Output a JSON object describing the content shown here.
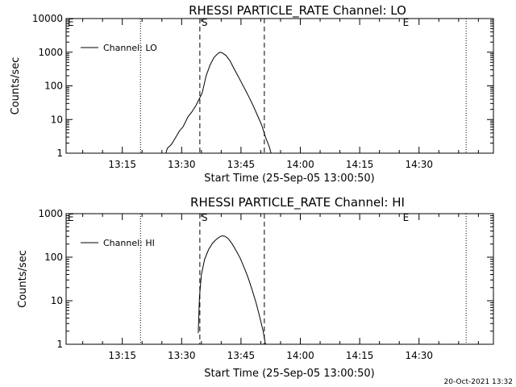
{
  "chart_data": [
    {
      "type": "line",
      "title": "RHESSI PARTICLE_RATE Channel: LO",
      "xlabel": "Start Time (25-Sep-05 13:00:50)",
      "ylabel": "Counts/sec",
      "yscale": "log",
      "ylim": [
        1,
        10000
      ],
      "ytick_labels": [
        "1",
        "10",
        "100",
        "1000",
        "10000"
      ],
      "xlim_minutes": [
        0,
        108
      ],
      "xticks": [
        {
          "minute": 14.2,
          "label": "13:15"
        },
        {
          "minute": 29.2,
          "label": "13:30"
        },
        {
          "minute": 44.2,
          "label": "13:45"
        },
        {
          "minute": 59.2,
          "label": "14:00"
        },
        {
          "minute": 74.2,
          "label": "14:15"
        },
        {
          "minute": 89.2,
          "label": "14:30"
        }
      ],
      "legend": {
        "entries": [
          "Channel: LO"
        ],
        "position": "top-left"
      },
      "markers": {
        "dotted_lines_minutes": [
          18.8,
          101.1
        ],
        "dashed_lines_minutes": [
          33.8,
          50.1
        ],
        "labels": [
          {
            "text": "E",
            "minute": 0
          },
          {
            "text": "S",
            "minute": 33.8
          },
          {
            "text": "E",
            "minute": 84.7
          }
        ]
      },
      "series": [
        {
          "name": "Channel: LO",
          "x": [
            25.2,
            25.6,
            26.6,
            27.6,
            28.6,
            29.6,
            30.8,
            31.8,
            32.8,
            33.6,
            34.4,
            35.4,
            36.4,
            37.4,
            38.4,
            38.9,
            39.4,
            40.4,
            41.4,
            42.4,
            43.4,
            44.4,
            45.4,
            46.4,
            47.4,
            48.4,
            49.4,
            50.4,
            51.4,
            51.8
          ],
          "y": [
            1,
            1.4,
            1.8,
            2.8,
            4.5,
            6.2,
            12,
            17,
            26,
            40,
            62,
            200,
            420,
            700,
            920,
            1000,
            960,
            800,
            560,
            330,
            200,
            120,
            72,
            42,
            24,
            13,
            7,
            3,
            1.5,
            1
          ]
        }
      ]
    },
    {
      "type": "line",
      "title": "RHESSI PARTICLE_RATE Channel: HI",
      "xlabel": "Start Time (25-Sep-05 13:00:50)",
      "ylabel": "Counts/sec",
      "yscale": "log",
      "ylim": [
        1,
        1000
      ],
      "ytick_labels": [
        "1",
        "10",
        "100",
        "1000"
      ],
      "xlim_minutes": [
        0,
        108
      ],
      "xticks": [
        {
          "minute": 14.2,
          "label": "13:15"
        },
        {
          "minute": 29.2,
          "label": "13:30"
        },
        {
          "minute": 44.2,
          "label": "13:45"
        },
        {
          "minute": 59.2,
          "label": "14:00"
        },
        {
          "minute": 74.2,
          "label": "14:15"
        },
        {
          "minute": 89.2,
          "label": "14:30"
        }
      ],
      "legend": {
        "entries": [
          "Channel: HI"
        ],
        "position": "top-left"
      },
      "markers": {
        "dotted_lines_minutes": [
          18.8,
          101.1
        ],
        "dashed_lines_minutes": [
          33.8,
          50.1
        ],
        "labels": [
          {
            "text": "E",
            "minute": 0
          },
          {
            "text": "S",
            "minute": 33.8
          },
          {
            "text": "E",
            "minute": 84.7
          }
        ]
      },
      "series": [
        {
          "name": "Channel: HI",
          "x": [
            33.4,
            33.7,
            34.2,
            35.0,
            36.0,
            37.0,
            38.0,
            39.0,
            39.6,
            40.2,
            41.0,
            42.0,
            43.0,
            44.0,
            45.0,
            46.0,
            47.0,
            48.0,
            49.0,
            49.8,
            50.4
          ],
          "y": [
            1.8,
            12,
            40,
            90,
            150,
            210,
            260,
            300,
            310,
            300,
            265,
            200,
            140,
            95,
            58,
            34,
            18,
            9,
            4,
            2,
            1
          ]
        }
      ]
    }
  ],
  "footer": {
    "timestamp": "20-Oct-2021 13:32"
  }
}
